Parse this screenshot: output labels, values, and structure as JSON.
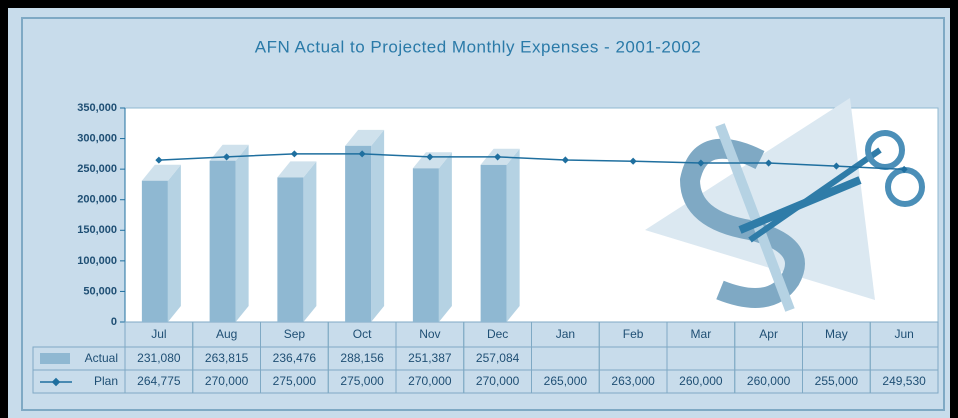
{
  "chart_data": {
    "type": "bar",
    "title": "AFN Actual to Projected Monthly Expenses - 2001-2002",
    "categories": [
      "Jul",
      "Aug",
      "Sep",
      "Oct",
      "Nov",
      "Dec",
      "Jan",
      "Feb",
      "Mar",
      "Apr",
      "May",
      "Jun"
    ],
    "series": [
      {
        "name": "Actual",
        "type": "bar",
        "color": "#8fb8d2",
        "values": [
          231080,
          263815,
          236476,
          288156,
          251387,
          257084,
          null,
          null,
          null,
          null,
          null,
          null
        ],
        "value_labels": [
          "231,080",
          "263,815",
          "236,476",
          "288,156",
          "251,387",
          "257,084",
          null,
          null,
          null,
          null,
          null,
          null
        ]
      },
      {
        "name": "Plan",
        "type": "line",
        "color": "#1f6f9f",
        "values": [
          264775,
          270000,
          275000,
          275000,
          270000,
          270000,
          265000,
          263000,
          260000,
          260000,
          255000,
          249530
        ],
        "value_labels": [
          "264,775",
          "270,000",
          "275,000",
          "275,000",
          "270,000",
          "270,000",
          "265,000",
          "263,000",
          "260,000",
          "260,000",
          "255,000",
          "249,530"
        ]
      }
    ],
    "ylim": [
      0,
      350000
    ],
    "yticks": [
      0,
      {
        "value": 50000,
        "label": "50,000"
      },
      {
        "value": 100000,
        "label": "100,000"
      },
      {
        "value": 150000,
        "label": "150,000"
      },
      {
        "value": 200000,
        "label": "200,000"
      },
      {
        "value": 250000,
        "label": "250,000"
      },
      {
        "value": 300000,
        "label": "300,000"
      },
      {
        "value": 350000,
        "label": "350,000"
      }
    ],
    "grid": false,
    "data_table": true
  }
}
